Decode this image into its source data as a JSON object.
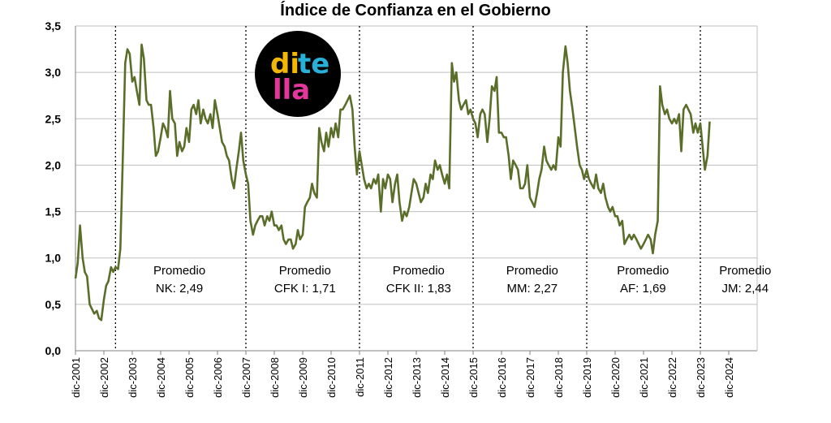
{
  "chart_data": {
    "type": "line",
    "title": "Índice de Confianza en el Gobierno",
    "xlabel": "",
    "ylabel": "",
    "ylim": [
      0,
      3.5
    ],
    "yticks": [
      "0,0",
      "0,5",
      "1,0",
      "1,5",
      "2,0",
      "2,5",
      "3,0",
      "3,5"
    ],
    "grid": true,
    "colors": {
      "line": "#5a6e2a",
      "grid": "#bfbfbf",
      "divider": "#000000"
    },
    "xticks": [
      "dic-2001",
      "dic-2002",
      "dic-2003",
      "dic-2004",
      "dic-2005",
      "dic-2006",
      "dic-2007",
      "dic-2008",
      "dic-2009",
      "dic-2010",
      "dic-2011",
      "dic-2012",
      "dic-2013",
      "dic-2014",
      "dic-2015",
      "dic-2016",
      "dic-2017",
      "dic-2018",
      "dic-2019",
      "dic-2020",
      "dic-2021",
      "dic-2022",
      "dic-2023",
      "dic-2024"
    ],
    "x_start_year": 2001.92,
    "x_end_year": 2025.92,
    "series": [
      {
        "values": [
          [
            2001.92,
            0.78
          ],
          [
            2002.0,
            0.95
          ],
          [
            2002.08,
            1.35
          ],
          [
            2002.17,
            1.0
          ],
          [
            2002.25,
            0.85
          ],
          [
            2002.33,
            0.8
          ],
          [
            2002.42,
            0.5
          ],
          [
            2002.5,
            0.45
          ],
          [
            2002.58,
            0.4
          ],
          [
            2002.67,
            0.43
          ],
          [
            2002.75,
            0.35
          ],
          [
            2002.83,
            0.33
          ],
          [
            2002.92,
            0.55
          ],
          [
            2003.0,
            0.7
          ],
          [
            2003.08,
            0.75
          ],
          [
            2003.17,
            0.9
          ],
          [
            2003.25,
            0.85
          ],
          [
            2003.33,
            0.9
          ],
          [
            2003.42,
            0.88
          ],
          [
            2003.5,
            1.1
          ],
          [
            2003.58,
            2.0
          ],
          [
            2003.67,
            3.1
          ],
          [
            2003.75,
            3.25
          ],
          [
            2003.83,
            3.2
          ],
          [
            2003.92,
            2.9
          ],
          [
            2004.0,
            2.95
          ],
          [
            2004.08,
            2.8
          ],
          [
            2004.17,
            2.65
          ],
          [
            2004.25,
            3.3
          ],
          [
            2004.33,
            3.15
          ],
          [
            2004.42,
            2.7
          ],
          [
            2004.5,
            2.65
          ],
          [
            2004.58,
            2.65
          ],
          [
            2004.67,
            2.4
          ],
          [
            2004.75,
            2.1
          ],
          [
            2004.83,
            2.15
          ],
          [
            2004.92,
            2.3
          ],
          [
            2005.0,
            2.45
          ],
          [
            2005.08,
            2.4
          ],
          [
            2005.17,
            2.3
          ],
          [
            2005.25,
            2.8
          ],
          [
            2005.33,
            2.5
          ],
          [
            2005.42,
            2.45
          ],
          [
            2005.5,
            2.1
          ],
          [
            2005.58,
            2.25
          ],
          [
            2005.67,
            2.15
          ],
          [
            2005.75,
            2.2
          ],
          [
            2005.83,
            2.4
          ],
          [
            2005.92,
            2.25
          ],
          [
            2006.0,
            2.6
          ],
          [
            2006.08,
            2.65
          ],
          [
            2006.17,
            2.55
          ],
          [
            2006.25,
            2.7
          ],
          [
            2006.33,
            2.45
          ],
          [
            2006.42,
            2.6
          ],
          [
            2006.5,
            2.5
          ],
          [
            2006.58,
            2.45
          ],
          [
            2006.67,
            2.55
          ],
          [
            2006.75,
            2.4
          ],
          [
            2006.83,
            2.7
          ],
          [
            2006.92,
            2.55
          ],
          [
            2007.0,
            2.4
          ],
          [
            2007.08,
            2.25
          ],
          [
            2007.17,
            2.2
          ],
          [
            2007.25,
            2.1
          ],
          [
            2007.33,
            2.05
          ],
          [
            2007.42,
            1.85
          ],
          [
            2007.5,
            1.75
          ],
          [
            2007.58,
            1.95
          ],
          [
            2007.67,
            2.15
          ],
          [
            2007.75,
            2.35
          ],
          [
            2007.83,
            2.05
          ],
          [
            2007.92,
            1.9
          ],
          [
            2008.0,
            1.8
          ],
          [
            2008.08,
            1.4
          ],
          [
            2008.17,
            1.25
          ],
          [
            2008.25,
            1.35
          ],
          [
            2008.33,
            1.4
          ],
          [
            2008.42,
            1.45
          ],
          [
            2008.5,
            1.45
          ],
          [
            2008.58,
            1.35
          ],
          [
            2008.67,
            1.45
          ],
          [
            2008.75,
            1.4
          ],
          [
            2008.83,
            1.5
          ],
          [
            2008.92,
            1.35
          ],
          [
            2009.0,
            1.35
          ],
          [
            2009.08,
            1.3
          ],
          [
            2009.17,
            1.35
          ],
          [
            2009.25,
            1.2
          ],
          [
            2009.33,
            1.15
          ],
          [
            2009.42,
            1.2
          ],
          [
            2009.5,
            1.2
          ],
          [
            2009.58,
            1.1
          ],
          [
            2009.67,
            1.15
          ],
          [
            2009.75,
            1.3
          ],
          [
            2009.83,
            1.2
          ],
          [
            2009.92,
            1.25
          ],
          [
            2010.0,
            1.55
          ],
          [
            2010.08,
            1.6
          ],
          [
            2010.17,
            1.65
          ],
          [
            2010.25,
            1.8
          ],
          [
            2010.33,
            1.7
          ],
          [
            2010.42,
            1.65
          ],
          [
            2010.5,
            2.4
          ],
          [
            2010.58,
            2.25
          ],
          [
            2010.67,
            2.15
          ],
          [
            2010.75,
            2.35
          ],
          [
            2010.83,
            2.2
          ],
          [
            2010.92,
            2.4
          ],
          [
            2011.0,
            2.3
          ],
          [
            2011.08,
            2.45
          ],
          [
            2011.17,
            2.3
          ],
          [
            2011.25,
            2.6
          ],
          [
            2011.33,
            2.6
          ],
          [
            2011.42,
            2.65
          ],
          [
            2011.5,
            2.7
          ],
          [
            2011.58,
            2.75
          ],
          [
            2011.67,
            2.6
          ],
          [
            2011.75,
            2.2
          ],
          [
            2011.83,
            1.9
          ],
          [
            2011.92,
            2.15
          ],
          [
            2012.0,
            2.0
          ],
          [
            2012.08,
            1.85
          ],
          [
            2012.17,
            1.75
          ],
          [
            2012.25,
            1.8
          ],
          [
            2012.33,
            1.75
          ],
          [
            2012.42,
            1.85
          ],
          [
            2012.5,
            1.8
          ],
          [
            2012.58,
            1.9
          ],
          [
            2012.67,
            1.5
          ],
          [
            2012.75,
            1.85
          ],
          [
            2012.83,
            1.75
          ],
          [
            2012.92,
            1.9
          ],
          [
            2013.0,
            1.85
          ],
          [
            2013.08,
            1.6
          ],
          [
            2013.17,
            1.8
          ],
          [
            2013.25,
            1.9
          ],
          [
            2013.33,
            1.6
          ],
          [
            2013.42,
            1.4
          ],
          [
            2013.5,
            1.5
          ],
          [
            2013.58,
            1.45
          ],
          [
            2013.67,
            1.55
          ],
          [
            2013.75,
            1.7
          ],
          [
            2013.83,
            1.85
          ],
          [
            2013.92,
            1.8
          ],
          [
            2014.0,
            1.7
          ],
          [
            2014.08,
            1.6
          ],
          [
            2014.17,
            1.65
          ],
          [
            2014.25,
            1.8
          ],
          [
            2014.33,
            1.7
          ],
          [
            2014.42,
            1.9
          ],
          [
            2014.5,
            1.85
          ],
          [
            2014.58,
            2.05
          ],
          [
            2014.67,
            1.95
          ],
          [
            2014.75,
            2.0
          ],
          [
            2014.83,
            1.9
          ],
          [
            2014.92,
            1.8
          ],
          [
            2015.0,
            1.9
          ],
          [
            2015.08,
            1.75
          ],
          [
            2015.17,
            3.1
          ],
          [
            2015.25,
            2.9
          ],
          [
            2015.33,
            3.0
          ],
          [
            2015.42,
            2.7
          ],
          [
            2015.5,
            2.6
          ],
          [
            2015.58,
            2.65
          ],
          [
            2015.67,
            2.7
          ],
          [
            2015.75,
            2.55
          ],
          [
            2015.83,
            2.6
          ],
          [
            2015.92,
            2.5
          ],
          [
            2016.0,
            2.45
          ],
          [
            2016.08,
            2.3
          ],
          [
            2016.17,
            2.55
          ],
          [
            2016.25,
            2.6
          ],
          [
            2016.33,
            2.55
          ],
          [
            2016.42,
            2.25
          ],
          [
            2016.5,
            2.5
          ],
          [
            2016.58,
            2.85
          ],
          [
            2016.67,
            2.8
          ],
          [
            2016.75,
            2.95
          ],
          [
            2016.83,
            2.35
          ],
          [
            2016.92,
            2.35
          ],
          [
            2017.0,
            2.3
          ],
          [
            2017.08,
            2.3
          ],
          [
            2017.17,
            2.1
          ],
          [
            2017.25,
            1.85
          ],
          [
            2017.33,
            2.05
          ],
          [
            2017.42,
            2.0
          ],
          [
            2017.5,
            1.95
          ],
          [
            2017.58,
            1.75
          ],
          [
            2017.67,
            1.75
          ],
          [
            2017.75,
            1.8
          ],
          [
            2017.83,
            2.0
          ],
          [
            2017.92,
            1.65
          ],
          [
            2018.0,
            1.6
          ],
          [
            2018.08,
            1.55
          ],
          [
            2018.17,
            1.7
          ],
          [
            2018.25,
            1.85
          ],
          [
            2018.33,
            1.95
          ],
          [
            2018.42,
            2.2
          ],
          [
            2018.5,
            2.05
          ],
          [
            2018.58,
            2.0
          ],
          [
            2018.67,
            1.95
          ],
          [
            2018.75,
            2.0
          ],
          [
            2018.83,
            1.95
          ],
          [
            2018.92,
            2.3
          ],
          [
            2019.0,
            2.2
          ],
          [
            2019.08,
            3.0
          ],
          [
            2019.17,
            3.28
          ],
          [
            2019.25,
            3.1
          ],
          [
            2019.33,
            2.8
          ],
          [
            2019.42,
            2.6
          ],
          [
            2019.5,
            2.4
          ],
          [
            2019.58,
            2.2
          ],
          [
            2019.67,
            2.0
          ],
          [
            2019.75,
            1.95
          ],
          [
            2019.83,
            1.85
          ],
          [
            2019.92,
            1.95
          ],
          [
            2020.0,
            1.85
          ],
          [
            2020.08,
            1.8
          ],
          [
            2020.17,
            1.75
          ],
          [
            2020.25,
            1.9
          ],
          [
            2020.33,
            1.75
          ],
          [
            2020.42,
            1.7
          ],
          [
            2020.5,
            1.8
          ],
          [
            2020.58,
            1.65
          ],
          [
            2020.67,
            1.55
          ],
          [
            2020.75,
            1.5
          ],
          [
            2020.83,
            1.55
          ],
          [
            2020.92,
            1.45
          ],
          [
            2021.0,
            1.45
          ],
          [
            2021.08,
            1.35
          ],
          [
            2021.17,
            1.4
          ],
          [
            2021.25,
            1.15
          ],
          [
            2021.33,
            1.2
          ],
          [
            2021.42,
            1.25
          ],
          [
            2021.5,
            1.2
          ],
          [
            2021.58,
            1.25
          ],
          [
            2021.67,
            1.2
          ],
          [
            2021.75,
            1.15
          ],
          [
            2021.83,
            1.1
          ],
          [
            2021.92,
            1.15
          ],
          [
            2022.0,
            1.2
          ],
          [
            2022.08,
            1.25
          ],
          [
            2022.17,
            1.2
          ],
          [
            2022.25,
            1.05
          ],
          [
            2022.33,
            1.25
          ],
          [
            2022.42,
            1.4
          ],
          [
            2022.5,
            2.85
          ],
          [
            2022.58,
            2.65
          ],
          [
            2022.67,
            2.55
          ],
          [
            2022.75,
            2.6
          ],
          [
            2022.83,
            2.5
          ],
          [
            2022.92,
            2.45
          ],
          [
            2023.0,
            2.5
          ],
          [
            2023.08,
            2.45
          ],
          [
            2023.17,
            2.55
          ],
          [
            2023.25,
            2.15
          ],
          [
            2023.33,
            2.6
          ],
          [
            2023.42,
            2.65
          ],
          [
            2023.5,
            2.6
          ],
          [
            2023.58,
            2.55
          ],
          [
            2023.67,
            2.35
          ],
          [
            2023.75,
            2.45
          ],
          [
            2023.83,
            2.35
          ],
          [
            2023.92,
            2.45
          ],
          [
            2024.0,
            2.2
          ],
          [
            2024.08,
            1.95
          ],
          [
            2024.17,
            2.1
          ],
          [
            2024.25,
            2.47
          ]
        ]
      }
    ],
    "dividers": [
      2003.33,
      2007.92,
      2011.92,
      2015.92,
      2019.92,
      2023.92
    ],
    "annotations": [
      {
        "label": "Promedio",
        "value": "NK: 2,49",
        "x_year": 2005.58
      },
      {
        "label": "Promedio",
        "value": "CFK I: 1,71",
        "x_year": 2010.0
      },
      {
        "label": "Promedio",
        "value": "CFK II: 1,83",
        "x_year": 2014.0
      },
      {
        "label": "Promedio",
        "value": "MM: 2,27",
        "x_year": 2018.0
      },
      {
        "label": "Promedio",
        "value": "AF: 1,69",
        "x_year": 2021.9
      },
      {
        "label": "Promedio",
        "value": "JM: 2,44",
        "x_year": 2025.5
      }
    ]
  },
  "logo": {
    "name": "ditella",
    "letters": [
      "di",
      "te",
      "lla"
    ],
    "colors": {
      "bg": "#000000",
      "di": "#f2b705",
      "te": "#29b0d9",
      "lla": "#e5369b"
    }
  }
}
